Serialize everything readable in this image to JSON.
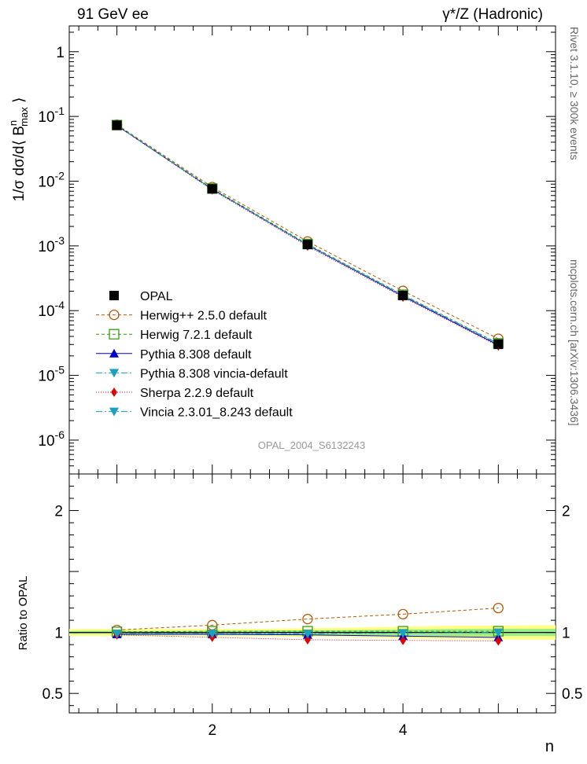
{
  "header": {
    "left": "91 GeV ee",
    "right": "γ*/Z (Hadronic)"
  },
  "side": {
    "top": "Rivet 3.1.10, ≥ 300k events",
    "bottom": "mcplots.cern.ch [arXiv:1306.3436]"
  },
  "colors": {
    "OPAL": "#000000",
    "Herwig++ 2.5.0 default": "#b45a0a",
    "Herwig 7.2.1 default": "#3a9a1a",
    "Pythia 8.308 default": "#0000cc",
    "Pythia 8.308 vincia-default": "#1aa0c0",
    "Sherpa 2.2.9 default": "#e00000",
    "Vincia 2.3.01_8.243 default": "#1aa0c0",
    "band_outer": "#ffff88",
    "band_inner": "#99ee88"
  },
  "chart_data": [
    {
      "type": "line",
      "ylog": true,
      "watermark": "OPAL_2004_S6132243",
      "ylabel": "1/σ dσ/d⟨ B^n_max ⟩",
      "xlim": [
        0.5,
        5.6
      ],
      "ylim": [
        3e-07,
        2.5
      ],
      "y_ticks": [
        {
          "v": 1,
          "label": "1"
        },
        {
          "v": 0.1,
          "label": "10^-1"
        },
        {
          "v": 0.01,
          "label": "10^-2"
        },
        {
          "v": 0.001,
          "label": "10^-3"
        },
        {
          "v": 0.0001,
          "label": "10^-4"
        },
        {
          "v": 1e-05,
          "label": "10^-5"
        },
        {
          "v": 1e-06,
          "label": "10^-6"
        }
      ],
      "x": [
        1,
        2,
        3,
        4,
        5
      ],
      "series": [
        {
          "name": "OPAL",
          "marker": "square",
          "dash": "none",
          "values": [
            0.073,
            0.0076,
            0.00105,
            0.000172,
            3.05e-05
          ]
        },
        {
          "name": "Herwig++ 2.5.0 default",
          "marker": "circle-open",
          "dash": "4,3",
          "values": [
            0.0745,
            0.0081,
            0.00117,
            0.000202,
            3.68e-05
          ]
        },
        {
          "name": "Herwig 7.2.1 default",
          "marker": "square-open",
          "dash": "4,3",
          "values": [
            0.0735,
            0.0077,
            0.00107,
            0.000176,
            3.12e-05
          ]
        },
        {
          "name": "Pythia 8.308 default",
          "marker": "triangle-up",
          "dash": "none",
          "values": [
            0.0722,
            0.0075,
            0.00103,
            0.000167,
            2.93e-05
          ]
        },
        {
          "name": "Pythia 8.308 vincia-default",
          "marker": "triangle-down",
          "dash": "8,3,2,3",
          "values": [
            0.0725,
            0.0075,
            0.00104,
            0.000172,
            3.07e-05
          ]
        },
        {
          "name": "Sherpa 2.2.9 default",
          "marker": "diamond",
          "dash": "1,2",
          "values": [
            0.0718,
            0.0073,
            0.00099,
            0.000161,
            2.84e-05
          ]
        },
        {
          "name": "Vincia 2.3.01_8.243 default",
          "marker": "triangle-down",
          "dash": "8,3,2,3",
          "values": [
            0.0725,
            0.0075,
            0.00104,
            0.000172,
            3.07e-05
          ]
        }
      ]
    },
    {
      "type": "line",
      "ylabel": "Ratio to OPAL",
      "xlabel": "n",
      "xlim": [
        0.5,
        5.6
      ],
      "ylim": [
        0.34,
        2.3
      ],
      "x_ticks": [
        {
          "v": 2,
          "label": "2"
        },
        {
          "v": 4,
          "label": "4"
        }
      ],
      "y_ticks": [
        {
          "v": 0.5,
          "label": "0.5"
        },
        {
          "v": 1,
          "label": "1"
        },
        {
          "v": 2,
          "label": "2"
        }
      ],
      "band_x": [
        0.5,
        1.5,
        2.5,
        3.5,
        4.5,
        5.6
      ],
      "band_outer": [
        0.028,
        0.028,
        0.03,
        0.04,
        0.055,
        0.06
      ],
      "band_inner": [
        0.012,
        0.012,
        0.015,
        0.02,
        0.028,
        0.03
      ],
      "x": [
        1,
        2,
        3,
        4,
        5
      ],
      "series": [
        {
          "name": "Herwig++ 2.5.0 default",
          "values": [
            1.02,
            1.06,
            1.11,
            1.15,
            1.2
          ]
        },
        {
          "name": "Herwig 7.2.1 default",
          "values": [
            1.005,
            1.01,
            1.01,
            1.01,
            1.01
          ]
        },
        {
          "name": "Pythia 8.308 default",
          "values": [
            0.985,
            0.985,
            0.98,
            0.97,
            0.96
          ]
        },
        {
          "name": "Pythia 8.308 vincia-default",
          "values": [
            0.99,
            0.99,
            0.99,
            0.995,
            1.0
          ]
        },
        {
          "name": "Sherpa 2.2.9 default",
          "values": [
            0.98,
            0.96,
            0.94,
            0.935,
            0.93
          ]
        },
        {
          "name": "Vincia 2.3.01_8.243 default",
          "values": [
            0.99,
            0.99,
            0.99,
            0.995,
            1.0
          ]
        }
      ]
    }
  ]
}
